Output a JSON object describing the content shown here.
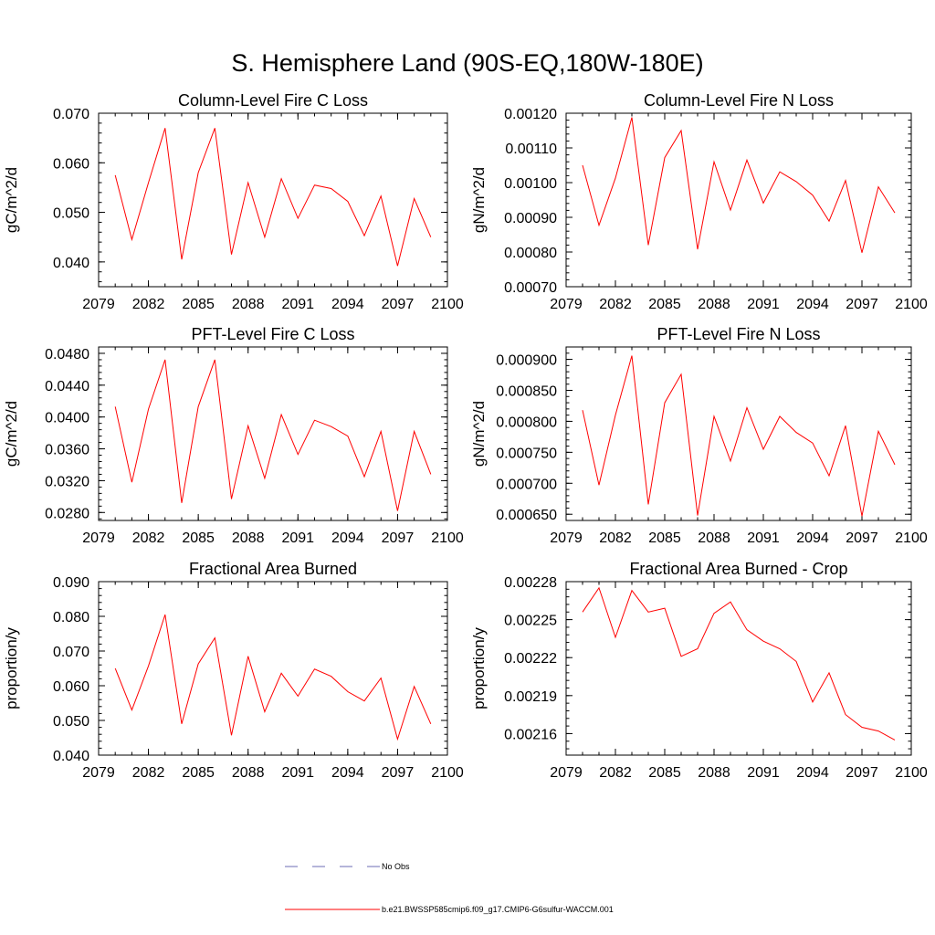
{
  "title": "S. Hemisphere Land (90S-EQ,180W-180E)",
  "colors": {
    "series": "#ff0000",
    "obs": "#6b6bb5",
    "axis": "#000000"
  },
  "legend": [
    {
      "label": "No Obs",
      "style": "dashed",
      "color": "#6b6bb5"
    },
    {
      "label": "b.e21.BWSSP585cmip6.f09_g17.CMIP6-G6sulfur-WACCM.001",
      "style": "solid",
      "color": "#ff0000"
    }
  ],
  "chart_data": [
    {
      "type": "line",
      "title": "Column-Level Fire C Loss",
      "ylabel": "gC/m^2/d",
      "xlim": [
        2079,
        2100
      ],
      "ylim": [
        0.035,
        0.07
      ],
      "xticks": [
        "2079",
        "2082",
        "2085",
        "2088",
        "2091",
        "2094",
        "2097",
        "2100"
      ],
      "yticks": [
        "0.040",
        "0.050",
        "0.060",
        "0.070"
      ],
      "grid": false,
      "series": [
        {
          "x": [
            2080,
            2081,
            2082,
            2083,
            2084,
            2085,
            2086,
            2087,
            2088,
            2089,
            2090,
            2091,
            2092,
            2093,
            2094,
            2095,
            2096,
            2097,
            2098,
            2099
          ],
          "y": [
            0.0575,
            0.0445,
            0.056,
            0.067,
            0.0405,
            0.058,
            0.067,
            0.0415,
            0.056,
            0.045,
            0.0568,
            0.0488,
            0.0555,
            0.0548,
            0.0522,
            0.0453,
            0.0533,
            0.0392,
            0.0528,
            0.045
          ]
        }
      ]
    },
    {
      "type": "line",
      "title": "Column-Level Fire N Loss",
      "ylabel": "gN/m^2/d",
      "xlim": [
        2079,
        2100
      ],
      "ylim": [
        0.0007,
        0.0012
      ],
      "xticks": [
        "2079",
        "2082",
        "2085",
        "2088",
        "2091",
        "2094",
        "2097",
        "2100"
      ],
      "yticks": [
        "0.00070",
        "0.00080",
        "0.00090",
        "0.00100",
        "0.00110",
        "0.00120"
      ],
      "grid": false,
      "series": [
        {
          "x": [
            2080,
            2081,
            2082,
            2083,
            2084,
            2085,
            2086,
            2087,
            2088,
            2089,
            2090,
            2091,
            2092,
            2093,
            2094,
            2095,
            2096,
            2097,
            2098,
            2099
          ],
          "y": [
            0.00105,
            0.000877,
            0.001013,
            0.001188,
            0.00082,
            0.001072,
            0.00115,
            0.000808,
            0.00106,
            0.000921,
            0.001065,
            0.000941,
            0.001031,
            0.001003,
            0.000964,
            0.000889,
            0.001006,
            0.000798,
            0.000988,
            0.000913
          ]
        }
      ]
    },
    {
      "type": "line",
      "title": "PFT-Level Fire C Loss",
      "ylabel": "gC/m^2/d",
      "xlim": [
        2079,
        2100
      ],
      "ylim": [
        0.027,
        0.0488
      ],
      "xticks": [
        "2079",
        "2082",
        "2085",
        "2088",
        "2091",
        "2094",
        "2097",
        "2100"
      ],
      "yticks": [
        "0.0280",
        "0.0320",
        "0.0360",
        "0.0400",
        "0.0440",
        "0.0480"
      ],
      "grid": false,
      "series": [
        {
          "x": [
            2080,
            2081,
            2082,
            2083,
            2084,
            2085,
            2086,
            2087,
            2088,
            2089,
            2090,
            2091,
            2092,
            2093,
            2094,
            2095,
            2096,
            2097,
            2098,
            2099
          ],
          "y": [
            0.0413,
            0.0318,
            0.041,
            0.0472,
            0.0292,
            0.0413,
            0.0472,
            0.0297,
            0.0389,
            0.0323,
            0.0403,
            0.0353,
            0.0396,
            0.0388,
            0.0376,
            0.0325,
            0.0382,
            0.0282,
            0.0382,
            0.0328
          ]
        }
      ]
    },
    {
      "type": "line",
      "title": "PFT-Level Fire N Loss",
      "ylabel": "gN/m^2/d",
      "xlim": [
        2079,
        2100
      ],
      "ylim": [
        0.00064,
        0.00092
      ],
      "xticks": [
        "2079",
        "2082",
        "2085",
        "2088",
        "2091",
        "2094",
        "2097",
        "2100"
      ],
      "yticks": [
        "0.000650",
        "0.000700",
        "0.000750",
        "0.000800",
        "0.000850",
        "0.000900"
      ],
      "grid": false,
      "series": [
        {
          "x": [
            2080,
            2081,
            2082,
            2083,
            2084,
            2085,
            2086,
            2087,
            2088,
            2089,
            2090,
            2091,
            2092,
            2093,
            2094,
            2095,
            2096,
            2097,
            2098,
            2099
          ],
          "y": [
            0.000818,
            0.000697,
            0.00081,
            0.000906,
            0.000666,
            0.00083,
            0.000876,
            0.000648,
            0.000808,
            0.000736,
            0.000822,
            0.000755,
            0.000808,
            0.000782,
            0.000765,
            0.000712,
            0.000793,
            0.000647,
            0.000784,
            0.00073
          ]
        }
      ]
    },
    {
      "type": "line",
      "title": "Fractional Area Burned",
      "ylabel": "proportion/y",
      "xlim": [
        2079,
        2100
      ],
      "ylim": [
        0.04,
        0.09
      ],
      "xticks": [
        "2079",
        "2082",
        "2085",
        "2088",
        "2091",
        "2094",
        "2097",
        "2100"
      ],
      "yticks": [
        "0.040",
        "0.050",
        "0.060",
        "0.070",
        "0.080",
        "0.090"
      ],
      "grid": false,
      "series": [
        {
          "x": [
            2080,
            2081,
            2082,
            2083,
            2084,
            2085,
            2086,
            2087,
            2088,
            2089,
            2090,
            2091,
            2092,
            2093,
            2094,
            2095,
            2096,
            2097,
            2098,
            2099
          ],
          "y": [
            0.065,
            0.053,
            0.0657,
            0.0805,
            0.049,
            0.0663,
            0.0738,
            0.0457,
            0.0685,
            0.0525,
            0.0636,
            0.057,
            0.0648,
            0.0627,
            0.0583,
            0.0556,
            0.0622,
            0.0446,
            0.0598,
            0.049
          ]
        }
      ]
    },
    {
      "type": "line",
      "title": "Fractional Area Burned - Crop",
      "ylabel": "proportion/y",
      "xlim": [
        2079,
        2100
      ],
      "ylim": [
        0.002143,
        0.00228
      ],
      "xticks": [
        "2079",
        "2082",
        "2085",
        "2088",
        "2091",
        "2094",
        "2097",
        "2100"
      ],
      "yticks": [
        "0.00216",
        "0.00219",
        "0.00222",
        "0.00225",
        "0.00228"
      ],
      "grid": false,
      "series": [
        {
          "x": [
            2080,
            2081,
            2082,
            2083,
            2084,
            2085,
            2086,
            2087,
            2088,
            2089,
            2090,
            2091,
            2092,
            2093,
            2094,
            2095,
            2096,
            2097,
            2098,
            2099
          ],
          "y": [
            0.002256,
            0.002275,
            0.002236,
            0.002273,
            0.002256,
            0.002259,
            0.002221,
            0.002227,
            0.002255,
            0.002264,
            0.002242,
            0.002233,
            0.002227,
            0.002217,
            0.002185,
            0.002208,
            0.002175,
            0.002165,
            0.002162,
            0.002155
          ]
        }
      ]
    }
  ]
}
